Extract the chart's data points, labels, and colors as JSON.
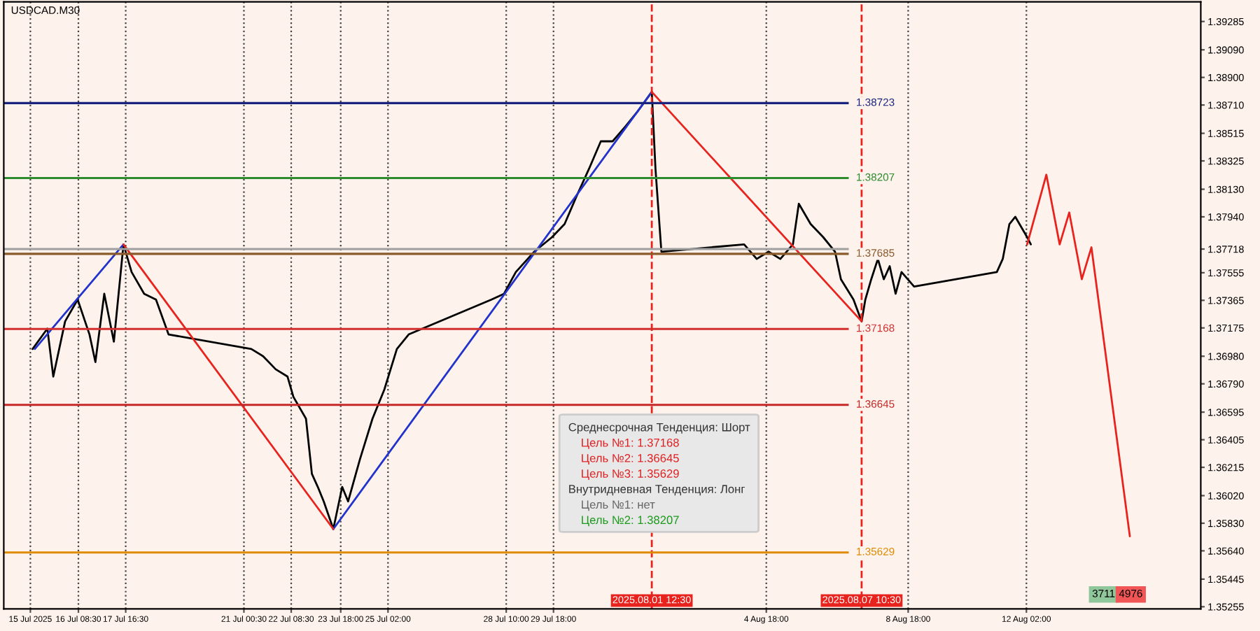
{
  "chart_data": {
    "type": "line",
    "title": "USDCAD.M30",
    "xlim": [
      "2025-07-14T06:00",
      "2025-08-17T00:00"
    ],
    "ylim": [
      1.3524,
      1.3942
    ],
    "xticks": [
      {
        "value": "2025-07-15T00:00",
        "label": "15 Jul 2025"
      },
      {
        "value": "2025-07-16T08:30",
        "label": "16 Jul 08:30"
      },
      {
        "value": "2025-07-17T16:30",
        "label": "17 Jul 16:30"
      },
      {
        "value": "2025-07-21T00:30",
        "label": "21 Jul 00:30"
      },
      {
        "value": "2025-07-22T08:30",
        "label": "22 Jul 08:30"
      },
      {
        "value": "2025-07-23T18:00",
        "label": "23 Jul 18:00"
      },
      {
        "value": "2025-07-25T02:00",
        "label": "25 Jul 02:00"
      },
      {
        "value": "2025-07-28T10:00",
        "label": "28 Jul 10:00"
      },
      {
        "value": "2025-07-29T18:00",
        "label": "29 Jul 18:00"
      },
      {
        "value": "2025-08-04T18:00",
        "label": "4 Aug 18:00"
      },
      {
        "value": "2025-08-08T18:00",
        "label": "8 Aug 18:00"
      },
      {
        "value": "2025-08-12T02:00",
        "label": "12 Aug 02:00"
      }
    ],
    "yticks": [
      {
        "value": 1.39285,
        "label": "1.39285"
      },
      {
        "value": 1.3909,
        "label": "1.39090"
      },
      {
        "value": 1.389,
        "label": "1.38900"
      },
      {
        "value": 1.3871,
        "label": "1.38710"
      },
      {
        "value": 1.38515,
        "label": "1.38515"
      },
      {
        "value": 1.38325,
        "label": "1.38325"
      },
      {
        "value": 1.3813,
        "label": "1.38130"
      },
      {
        "value": 1.3794,
        "label": "1.37940"
      },
      {
        "value": 1.37718,
        "label": "1.37718"
      },
      {
        "value": 1.37555,
        "label": "1.37555"
      },
      {
        "value": 1.37365,
        "label": "1.37365"
      },
      {
        "value": 1.37175,
        "label": "1.37175"
      },
      {
        "value": 1.3698,
        "label": "1.36980"
      },
      {
        "value": 1.3679,
        "label": "1.36790"
      },
      {
        "value": 1.36595,
        "label": "1.36595"
      },
      {
        "value": 1.36405,
        "label": "1.36405"
      },
      {
        "value": 1.36215,
        "label": "1.36215"
      },
      {
        "value": 1.3602,
        "label": "1.36020"
      },
      {
        "value": 1.3583,
        "label": "1.35830"
      },
      {
        "value": 1.3564,
        "label": "1.35640"
      },
      {
        "value": 1.35445,
        "label": "1.35445"
      },
      {
        "value": 1.35255,
        "label": "1.35255"
      }
    ],
    "grid": "x",
    "series": [
      {
        "color": "#000000",
        "x": [
          "2025-07-15T01:30",
          "2025-07-15T11:30",
          "2025-07-15T15:30",
          "2025-07-15T23:30",
          "2025-07-16T08:00",
          "2025-07-16T16:00",
          "2025-07-16T20:00",
          "2025-07-17T02:00",
          "2025-07-17T08:30",
          "2025-07-17T15:00",
          "2025-07-17T20:30",
          "2025-07-18T05:00",
          "2025-07-18T13:00",
          "2025-07-18T21:30",
          "2025-07-21T05:30",
          "2025-07-21T13:30",
          "2025-07-21T22:00",
          "2025-07-22T06:00",
          "2025-07-22T10:00",
          "2025-07-22T18:30",
          "2025-07-22T22:30",
          "2025-07-23T02:30",
          "2025-07-23T06:30",
          "2025-07-23T13:00",
          "2025-07-23T19:00",
          "2025-07-23T23:00",
          "2025-07-24T07:00",
          "2025-07-24T15:30",
          "2025-07-24T23:30",
          "2025-07-25T08:00",
          "2025-07-25T16:00",
          "2025-07-28T00:00",
          "2025-07-28T08:30",
          "2025-07-28T16:30",
          "2025-07-29T05:00",
          "2025-07-29T17:00",
          "2025-07-30T01:30",
          "2025-07-30T09:30",
          "2025-07-30T18:00",
          "2025-07-31T02:00",
          "2025-07-31T10:00",
          "2025-07-31T18:30",
          "2025-08-01T02:30",
          "2025-08-01T12:30",
          "2025-08-01T15:00",
          "2025-08-01T19:00",
          "2025-08-04T03:00",
          "2025-08-04T11:30",
          "2025-08-04T19:30",
          "2025-08-05T03:30",
          "2025-08-05T12:00",
          "2025-08-05T16:00",
          "2025-08-06T00:00",
          "2025-08-06T08:30",
          "2025-08-06T16:30",
          "2025-08-06T20:30",
          "2025-08-07T05:00",
          "2025-08-07T10:30",
          "2025-08-07T13:00",
          "2025-08-07T17:00",
          "2025-08-07T21:30",
          "2025-08-08T01:30",
          "2025-08-08T05:30",
          "2025-08-08T09:30",
          "2025-08-08T13:30",
          "2025-08-08T22:00",
          "2025-08-11T06:00",
          "2025-08-11T10:00",
          "2025-08-11T14:30",
          "2025-08-11T18:30",
          "2025-08-12T02:30",
          "2025-08-12T05:00"
        ],
        "values": [
          1.3703,
          1.3717,
          1.3684,
          1.3722,
          1.3737,
          1.3713,
          1.3694,
          1.3741,
          1.3708,
          1.3775,
          1.3756,
          1.3741,
          1.3737,
          1.3713,
          1.3703,
          1.3698,
          1.3689,
          1.3684,
          1.367,
          1.3655,
          1.3617,
          1.3608,
          1.3598,
          1.3579,
          1.3608,
          1.3598,
          1.3627,
          1.3655,
          1.3675,
          1.3703,
          1.3713,
          1.3737,
          1.3741,
          1.3756,
          1.377,
          1.378,
          1.3789,
          1.3808,
          1.3827,
          1.3846,
          1.3846,
          1.3856,
          1.3866,
          1.388,
          1.3827,
          1.377,
          1.3775,
          1.3765,
          1.377,
          1.3765,
          1.3775,
          1.3803,
          1.3789,
          1.378,
          1.377,
          1.3751,
          1.3737,
          1.3722,
          1.3737,
          1.3751,
          1.3765,
          1.3751,
          1.376,
          1.3741,
          1.3756,
          1.3746,
          1.3756,
          1.3765,
          1.3789,
          1.3794,
          1.378,
          1.3775
        ]
      },
      {
        "color": "#2233cc",
        "x": [
          "2025-07-15T03:00",
          "2025-07-17T15:00",
          "2025-07-21T14:00",
          "2025-07-23T13:00",
          "2025-08-01T12:30"
        ],
        "values": [
          1.3703,
          1.3775,
          null,
          1.3579,
          1.388
        ]
      },
      {
        "color": "#e8231e",
        "x": [
          "2025-07-17T15:00",
          "2025-07-23T13:00",
          "2025-07-28T12:00",
          "2025-08-01T12:30",
          "2025-08-07T10:30"
        ],
        "values": [
          1.3775,
          1.3579,
          null,
          1.388,
          1.3722
        ]
      },
      {
        "color": "#e8231e",
        "x": [
          "2025-08-12T02:30",
          "2025-08-12T15:30",
          "2025-08-13T00:30",
          "2025-08-13T07:00",
          "2025-08-13T15:30",
          "2025-08-13T22:00",
          "2025-08-15T00:00"
        ],
        "values": [
          1.3775,
          1.3823,
          1.3775,
          1.3797,
          1.3751,
          1.3773,
          1.3574
        ]
      }
    ],
    "ref_lines": [
      {
        "axis": "x",
        "value": "2025-08-01T12:30",
        "label": "2025.08.01 12:30",
        "color": "#e8231e",
        "line_style": "dashed"
      },
      {
        "axis": "x",
        "value": "2025-08-07T10:30",
        "label": "2025.08.07 10:30",
        "color": "#e8231e",
        "line_style": "dashed"
      },
      {
        "axis": "y",
        "value": 1.38723,
        "label": "1.38723",
        "color": "#1a237e",
        "line_style": "solid"
      },
      {
        "axis": "y",
        "value": 1.38207,
        "label": "1.38207",
        "color": "#2e8b2e",
        "line_style": "solid"
      },
      {
        "axis": "y",
        "value": 1.37685,
        "label": "1.37685",
        "color": "#8b5a2b",
        "line_style": "solid"
      },
      {
        "axis": "y",
        "value": 1.37168,
        "label": "1.37168",
        "color": "#d32f2f",
        "line_style": "solid"
      },
      {
        "axis": "y",
        "value": 1.36645,
        "label": "1.36645",
        "color": "#c62828",
        "line_style": "solid"
      },
      {
        "axis": "y",
        "value": 1.35629,
        "label": "1.35629",
        "color": "#e08a00",
        "line_style": "solid"
      },
      {
        "axis": "y",
        "value": 1.37718,
        "label": null,
        "color": "#a0a0a0",
        "line_style": "solid"
      }
    ],
    "annotations": [
      "Среднесрочная Тенденция: Шорт",
      "Цель №1: 1.37168",
      "Цель №2: 1.36645",
      "Цель №3: 1.35629",
      "Внутридневная Тенденция: Лонг",
      "Цель №1: нет",
      "Цель №2: 1.38207",
      "3711",
      "4976"
    ]
  }
}
